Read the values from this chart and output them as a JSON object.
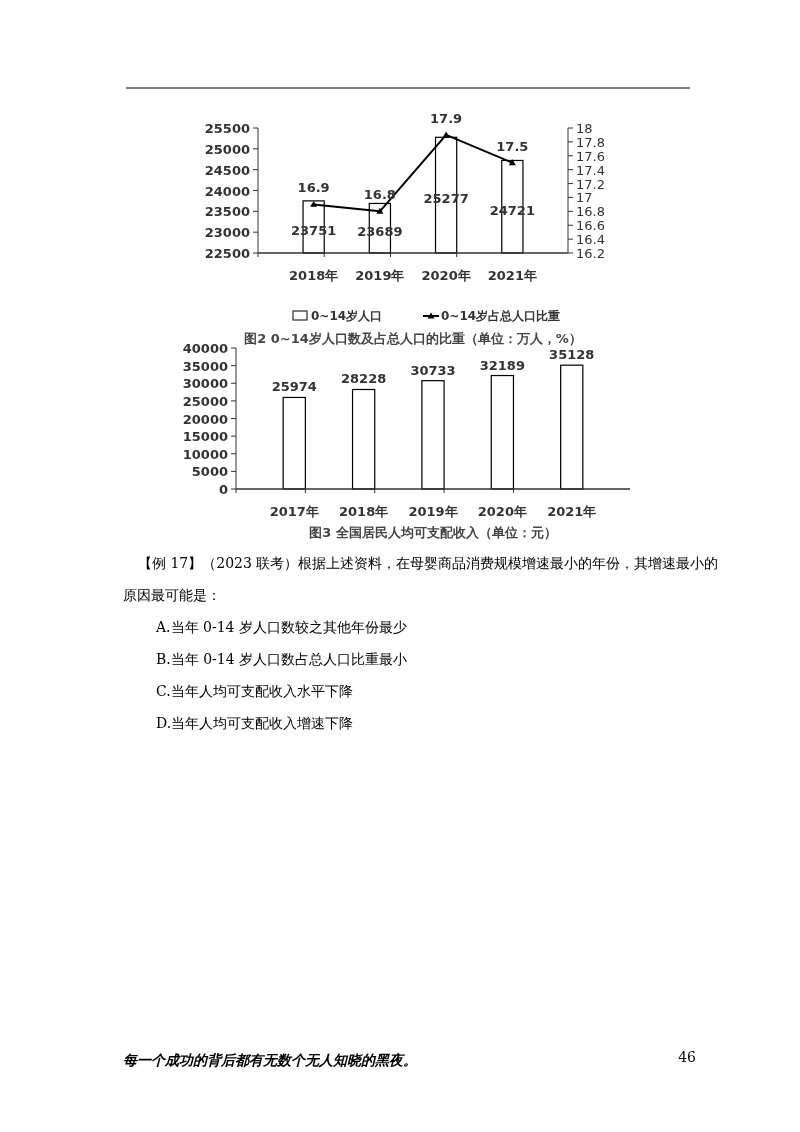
{
  "chart_data": [
    {
      "type": "bar",
      "title": "图2  0~14岁人口数及占总人口的比重（单位：万人，%）",
      "categories": [
        "2018年",
        "2019年",
        "2020年",
        "2021年"
      ],
      "series": [
        {
          "name": "0~14岁人口",
          "type": "bar",
          "color": "#ffffff",
          "values": [
            23751,
            23689,
            25277,
            24721
          ]
        },
        {
          "name": "0~14岁占总人口比重",
          "type": "line",
          "axis": "y2",
          "color": "#000000",
          "marker": "triangle",
          "values": [
            16.9,
            16.8,
            17.9,
            17.5
          ]
        }
      ],
      "ylim": [
        22500,
        25500
      ],
      "yticks": [
        22500,
        23000,
        23500,
        24000,
        24500,
        25000,
        25500
      ],
      "y2lim": [
        16.2,
        18
      ],
      "y2ticks": [
        {
          "value": 16.2,
          "label": "16.2"
        },
        {
          "value": 16.4,
          "label": "16.4"
        },
        {
          "value": 16.6,
          "label": "16.6"
        },
        {
          "value": 16.8,
          "label": "16.8"
        },
        {
          "value": 17,
          "label": "17"
        },
        {
          "value": 17.2,
          "label": "17.2"
        },
        {
          "value": 17.4,
          "label": "17.4"
        },
        {
          "value": 17.6,
          "label": "17.6"
        },
        {
          "value": 17.8,
          "label": "17.8"
        },
        {
          "value": 18,
          "label": "18"
        }
      ],
      "data_labels": true,
      "legend": "bottom",
      "grid": false
    },
    {
      "type": "bar",
      "title": "图3  全国居民人均可支配收入（单位：元）",
      "categories": [
        "2017年",
        "2018年",
        "2019年",
        "2020年",
        "2021年"
      ],
      "series": [
        {
          "type": "bar",
          "color": "#ffffff",
          "values": [
            25974,
            28228,
            30733,
            32189,
            35128
          ]
        }
      ],
      "ylim": [
        0,
        40000
      ],
      "yticks": [
        0,
        5000,
        10000,
        15000,
        20000,
        25000,
        30000,
        35000,
        40000
      ],
      "data_labels": true,
      "legend": false,
      "grid": false
    },
    {
      "type": "other",
      "annotations": [
        "【例 17】（2023 联考）根据上述资料，在母婴商品消费规模增速最小的年份，其增速最小的原因最可能是：",
        "A.当年 0-14 岁人口数较之其他年份最少",
        "B.当年 0-14 岁人口数占总人口比重最小",
        "C.当年人均可支配收入水平下降",
        "D.当年人均可支配收入增速下降",
        "每一个成功的背后都有无数个无人知晓的黑夜。",
        "46"
      ]
    }
  ]
}
